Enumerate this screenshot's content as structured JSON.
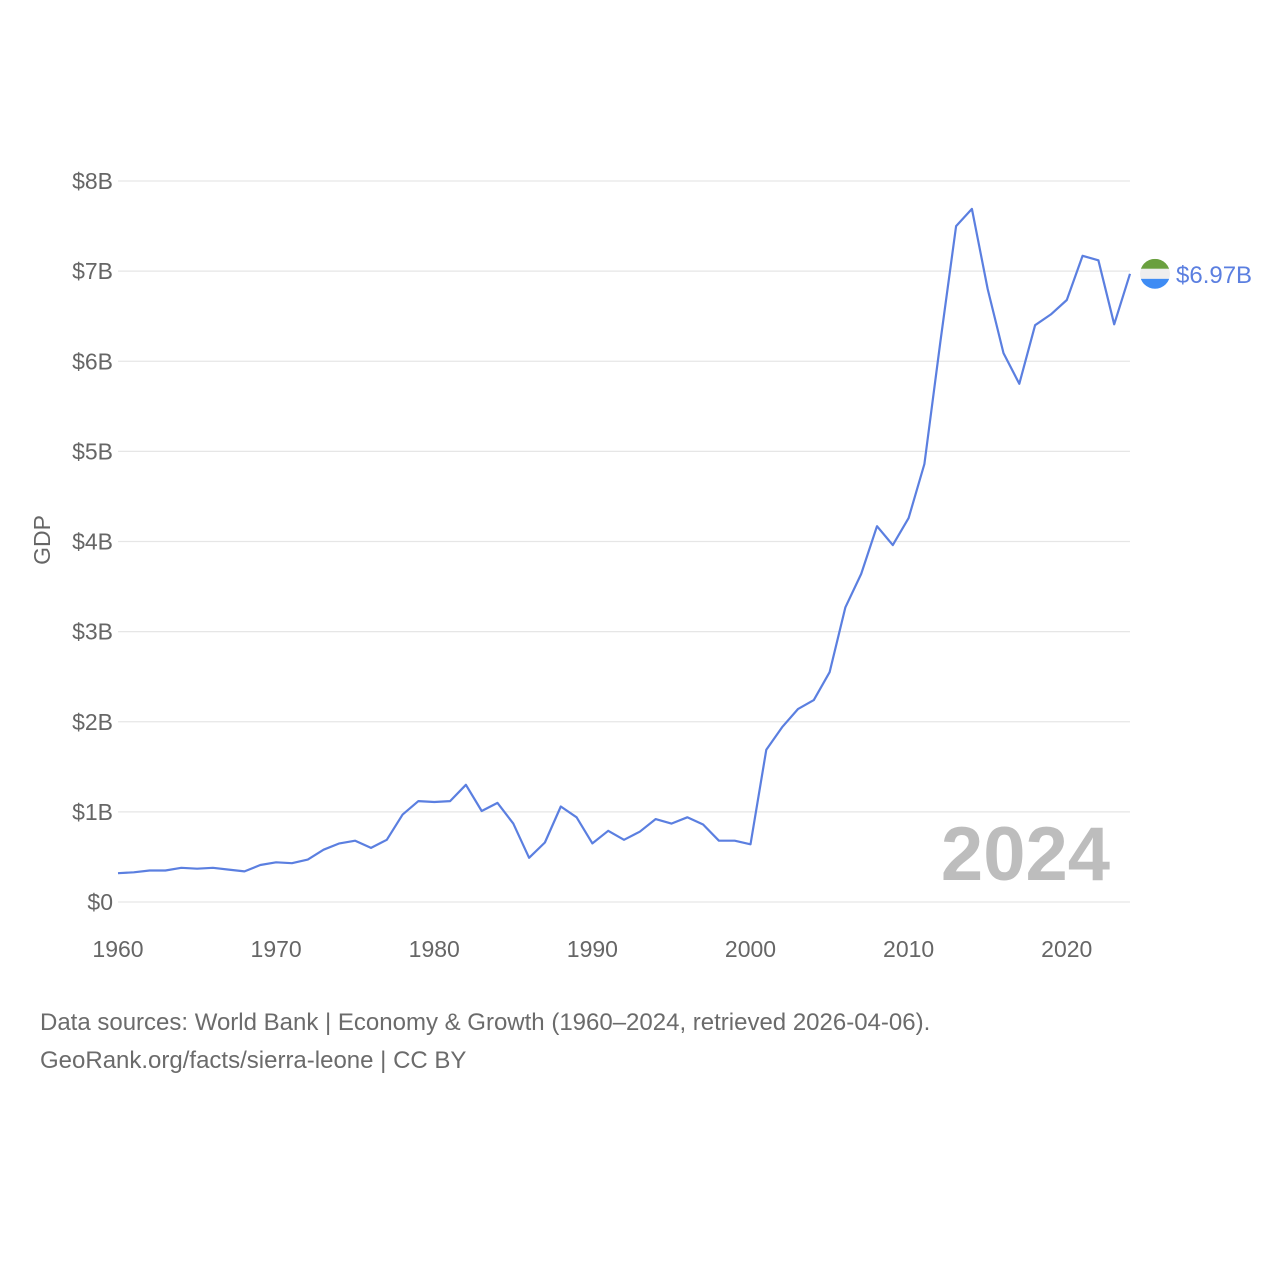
{
  "chart_data": {
    "type": "line",
    "title": "",
    "xlabel": "",
    "ylabel": "GDP",
    "xlim": [
      1960,
      2024
    ],
    "ylim": [
      0,
      8
    ],
    "y_unit": "billion USD",
    "x_ticks": [
      1960,
      1970,
      1980,
      1990,
      2000,
      2010,
      2020
    ],
    "y_ticks": [
      {
        "value": 0,
        "label": "$0"
      },
      {
        "value": 1,
        "label": "$1B"
      },
      {
        "value": 2,
        "label": "$2B"
      },
      {
        "value": 3,
        "label": "$3B"
      },
      {
        "value": 4,
        "label": "$4B"
      },
      {
        "value": 5,
        "label": "$5B"
      },
      {
        "value": 6,
        "label": "$6B"
      },
      {
        "value": 7,
        "label": "$7B"
      },
      {
        "value": 8,
        "label": "$8B"
      }
    ],
    "grid": true,
    "series": [
      {
        "name": "Sierra Leone",
        "color": "#5b7fe0",
        "x": [
          1960,
          1961,
          1962,
          1963,
          1964,
          1965,
          1966,
          1967,
          1968,
          1969,
          1970,
          1971,
          1972,
          1973,
          1974,
          1975,
          1976,
          1977,
          1978,
          1979,
          1980,
          1981,
          1982,
          1983,
          1984,
          1985,
          1986,
          1987,
          1988,
          1989,
          1990,
          1991,
          1992,
          1993,
          1994,
          1995,
          1996,
          1997,
          1998,
          1999,
          2000,
          2001,
          2002,
          2003,
          2004,
          2005,
          2006,
          2007,
          2008,
          2009,
          2010,
          2011,
          2012,
          2013,
          2014,
          2015,
          2016,
          2017,
          2018,
          2019,
          2020,
          2021,
          2022,
          2023,
          2024
        ],
        "values": [
          0.32,
          0.33,
          0.35,
          0.35,
          0.38,
          0.37,
          0.38,
          0.36,
          0.34,
          0.41,
          0.44,
          0.43,
          0.47,
          0.58,
          0.65,
          0.68,
          0.6,
          0.69,
          0.97,
          1.12,
          1.11,
          1.12,
          1.3,
          1.01,
          1.1,
          0.87,
          0.49,
          0.66,
          1.06,
          0.94,
          0.65,
          0.79,
          0.69,
          0.78,
          0.92,
          0.87,
          0.94,
          0.86,
          0.68,
          0.68,
          0.64,
          1.69,
          1.94,
          2.14,
          2.24,
          2.55,
          3.27,
          3.64,
          4.17,
          3.96,
          4.26,
          4.86,
          6.21,
          7.5,
          7.69,
          6.8,
          6.09,
          5.75,
          6.4,
          6.52,
          6.68,
          7.17,
          7.12,
          6.41,
          6.97
        ]
      }
    ],
    "end_label": "$6.97B",
    "year_watermark": "2024",
    "flag_colors": [
      "#6aa03f",
      "#eeeeee",
      "#3e8cf4"
    ]
  },
  "footer": {
    "line1": "Data sources: World Bank | Economy & Growth (1960–2024, retrieved 2026-04-06).",
    "line2": "GeoRank.org/facts/sierra-leone | CC BY"
  }
}
